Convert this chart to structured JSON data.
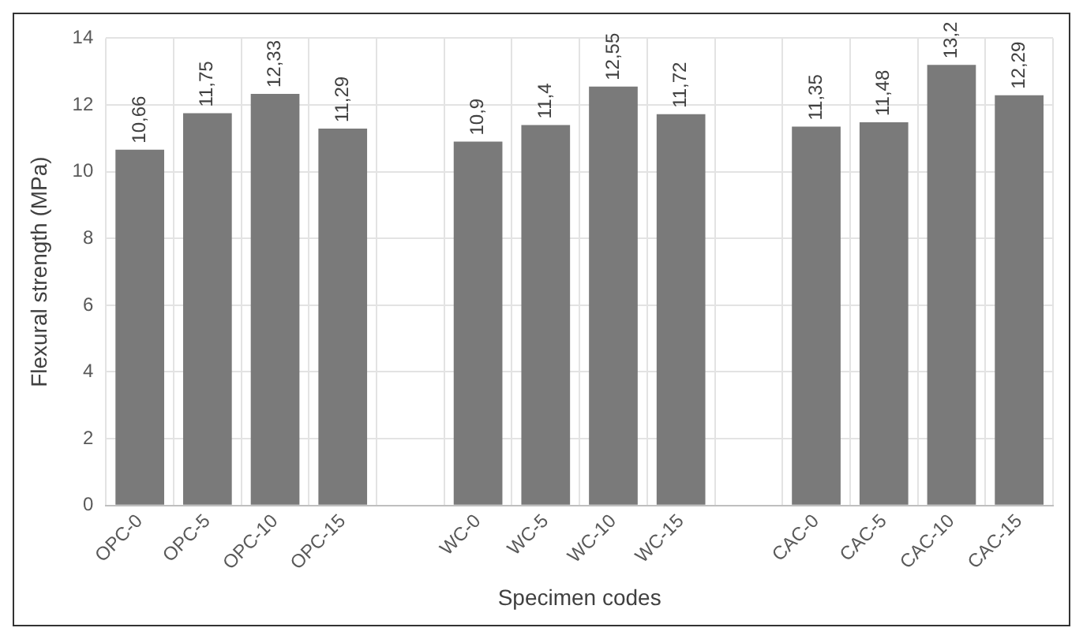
{
  "chart_data": {
    "type": "bar",
    "xlabel": "Specimen codes",
    "ylabel": "Flexural strength (MPa)",
    "categories": [
      "OPC-0",
      "OPC-5",
      "OPC-10",
      "OPC-15",
      null,
      "WC-0",
      "WC-5",
      "WC-10",
      "WC-15",
      null,
      "CAC-0",
      "CAC-5",
      "CAC-10",
      "CAC-15"
    ],
    "values": [
      10.66,
      11.75,
      12.33,
      11.29,
      null,
      10.9,
      11.4,
      12.55,
      11.72,
      null,
      11.35,
      11.48,
      13.2,
      12.29
    ],
    "value_labels": [
      "10,66",
      "11,75",
      "12,33",
      "11,29",
      null,
      "10,9",
      "11,4",
      "12,55",
      "11,72",
      null,
      "11,35",
      "11,48",
      "13,2",
      "12,29"
    ],
    "color": "#7a7a7a",
    "ylim": [
      0,
      14
    ],
    "yticks": [
      0,
      2,
      4,
      6,
      8,
      10,
      12,
      14
    ],
    "grid": true
  }
}
